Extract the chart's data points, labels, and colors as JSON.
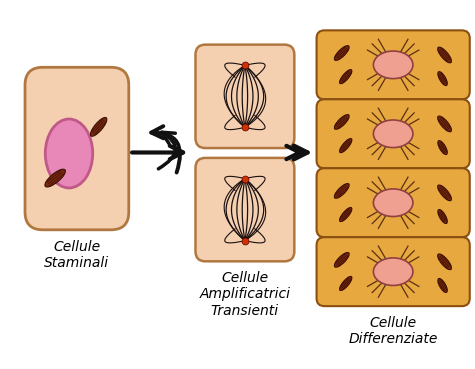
{
  "bg_color": "#ffffff",
  "stem_cell_fill": "#f5d0b0",
  "stem_cell_border": "#b07840",
  "stem_nucleus_fill": "#e888b8",
  "stem_nucleus_border": "#c05888",
  "transient_fill": "#f5d0b0",
  "transient_border": "#b07840",
  "spindle_color": "#1a1010",
  "centrosome_color": "#cc3300",
  "diff_fill": "#e8a840",
  "diff_border": "#8b5010",
  "diff_nucleus_fill": "#f0a090",
  "diff_nucleus_border": "#904040",
  "organelle_color": "#7a2810",
  "organelle_border": "#3a1000",
  "label1": "Cellule\nStaminali",
  "label2": "Cellule\nAmplificatrici\nTransienti",
  "label3": "Cellule\nDifferenziate",
  "arrow_color": "#111111"
}
